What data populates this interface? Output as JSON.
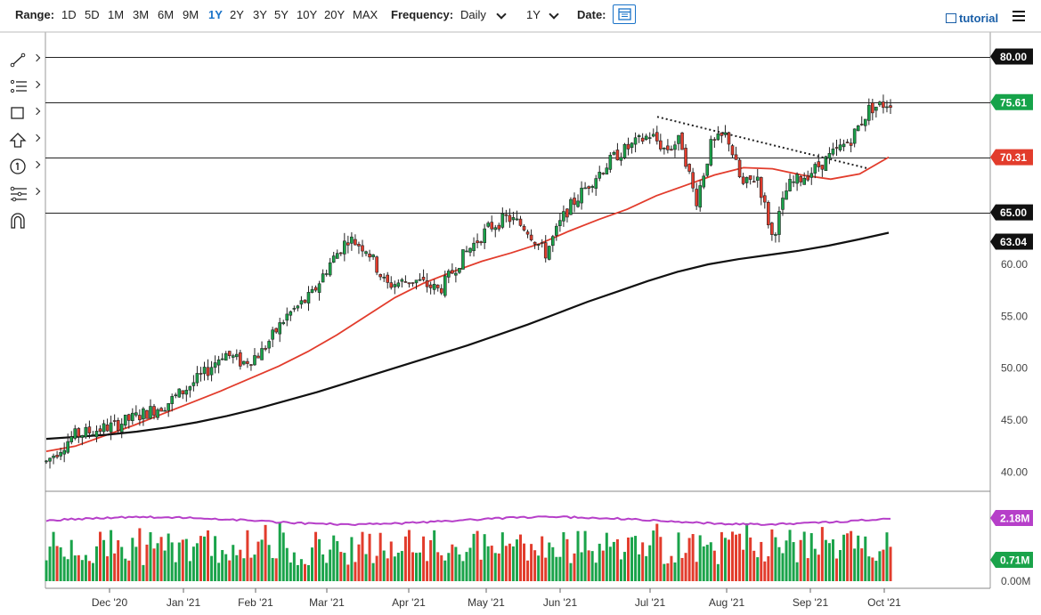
{
  "toolbar": {
    "range_label": "Range:",
    "ranges": [
      "1D",
      "5D",
      "1M",
      "3M",
      "6M",
      "9M",
      "1Y",
      "2Y",
      "3Y",
      "5Y",
      "10Y",
      "20Y",
      "MAX"
    ],
    "active_range": "1Y",
    "frequency_label": "Frequency:",
    "frequency_value": "Daily",
    "period_value": "1Y",
    "date_label": "Date:",
    "brand": "tutorial",
    "accent_color": "#1a73c8"
  },
  "sidebar_tools": [
    "trendline-tool-icon",
    "fibonacci-tool-icon",
    "rectangle-tool-icon",
    "arrow-tool-icon",
    "numbered-marker-icon",
    "pattern-tool-icon",
    "magnet-icon"
  ],
  "chart_data": {
    "type": "candlestick",
    "x_tick_labels": [
      "Dec '20",
      "Jan '21",
      "Feb '21",
      "Mar '21",
      "Apr '21",
      "May '21",
      "Jun '21",
      "Jul '21",
      "Aug '21",
      "Sep '21",
      "Oct '21"
    ],
    "y_tick_labels": [
      "60.00",
      "55.00",
      "50.00",
      "45.00",
      "40.00"
    ],
    "ylim": [
      38.5,
      81.5
    ],
    "horizontal_levels": [
      80.0,
      75.61,
      70.31,
      65.0
    ],
    "price_tags": [
      {
        "value": "80.00",
        "color": "#111111"
      },
      {
        "value": "75.61",
        "color": "#16a34a"
      },
      {
        "value": "70.31",
        "color": "#e23c2c"
      },
      {
        "value": "65.00",
        "color": "#111111"
      },
      {
        "value": "63.04",
        "color": "#111111"
      }
    ],
    "price_path": [
      [
        "Nov '20",
        41.0
      ],
      [
        "Nov '20",
        43.5
      ],
      [
        "Dec '20",
        44.5
      ],
      [
        "Dec '20",
        45.5
      ],
      [
        "Dec '20",
        46.5
      ],
      [
        "Jan '21",
        48.0
      ],
      [
        "Jan '21",
        49.5
      ],
      [
        "Jan '21",
        51.5
      ],
      [
        "Jan '21",
        50.5
      ],
      [
        "Feb '21",
        51.5
      ],
      [
        "Feb '21",
        55.0
      ],
      [
        "Feb '21",
        57.0
      ],
      [
        "Mar '21",
        60.0
      ],
      [
        "Mar '21",
        62.5
      ],
      [
        "Mar '21",
        61.5
      ],
      [
        "Mar '21",
        58.0
      ],
      [
        "Apr '21",
        58.5
      ],
      [
        "Apr '21",
        57.5
      ],
      [
        "Apr '21",
        61.0
      ],
      [
        "May '21",
        63.5
      ],
      [
        "May '21",
        64.5
      ],
      [
        "May '21",
        63.5
      ],
      [
        "May '21",
        61.0
      ],
      [
        "Jun '21",
        65.0
      ],
      [
        "Jun '21",
        68.0
      ],
      [
        "Jun '21",
        70.5
      ],
      [
        "Jul '21",
        72.5
      ],
      [
        "Jul '21",
        71.0
      ],
      [
        "Jul '21",
        72.0
      ],
      [
        "Jul '21",
        66.0
      ],
      [
        "Jul '21",
        71.5
      ],
      [
        "Aug '21",
        72.5
      ],
      [
        "Aug '21",
        67.5
      ],
      [
        "Aug '21",
        68.5
      ],
      [
        "Aug '21",
        62.5
      ],
      [
        "Aug '21",
        67.5
      ],
      [
        "Sep '21",
        69.0
      ],
      [
        "Sep '21",
        70.5
      ],
      [
        "Sep '21",
        72.0
      ],
      [
        "Sep '21",
        75.0
      ],
      [
        "Oct '21",
        75.61
      ]
    ],
    "series": [
      {
        "name": "",
        "color": "#e23c2c",
        "values": [
          42.0,
          42.5,
          43.5,
          44.5,
          45.6,
          46.7,
          47.8,
          49.0,
          50.2,
          51.6,
          53.2,
          55.0,
          56.8,
          58.2,
          59.3,
          60.3,
          61.1,
          62.0,
          63.2,
          64.3,
          65.3,
          66.6,
          67.6,
          68.6,
          69.3,
          69.2,
          68.6,
          68.2,
          68.7,
          70.31
        ]
      },
      {
        "name": "",
        "color": "#111111",
        "values": [
          43.2,
          43.4,
          43.6,
          43.9,
          44.3,
          44.8,
          45.4,
          46.1,
          46.9,
          47.7,
          48.6,
          49.5,
          50.4,
          51.3,
          52.2,
          53.2,
          54.2,
          55.3,
          56.4,
          57.4,
          58.4,
          59.3,
          60.0,
          60.5,
          60.9,
          61.3,
          61.8,
          62.4,
          63.04
        ]
      }
    ],
    "trendline": {
      "from": [
        "Jul '21",
        74.2
      ],
      "to": [
        "Sep '21",
        69.2
      ],
      "style": "dotted"
    },
    "volume": {
      "y_tick_labels": [
        "2.18M",
        "0.71M",
        "0.00M"
      ],
      "avg_line_color": "#b63fc9",
      "up_color": "#1aa34a",
      "down_color": "#e23c2c"
    },
    "grid": false
  }
}
